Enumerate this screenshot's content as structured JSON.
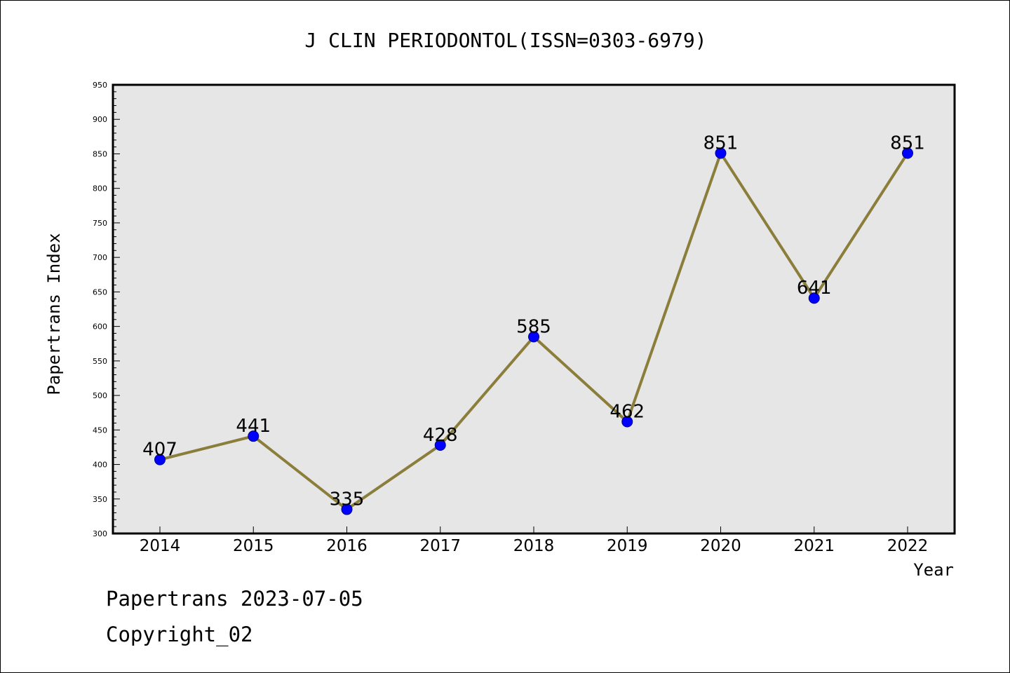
{
  "chart_data": {
    "type": "line",
    "title": "J CLIN PERIODONTOL(ISSN=0303-6979)",
    "xlabel": "Year",
    "ylabel": "Papertrans Index",
    "categories": [
      "2014",
      "2015",
      "2016",
      "2017",
      "2018",
      "2019",
      "2020",
      "2021",
      "2022"
    ],
    "series": [
      {
        "values": [
          407,
          441,
          335,
          428,
          585,
          462,
          851,
          641,
          851
        ]
      }
    ],
    "data_labels": [
      "407",
      "441",
      "335",
      "428",
      "585",
      "462",
      "851",
      "641",
      "851"
    ],
    "ylim": [
      300,
      950
    ],
    "yticks": [
      300,
      350,
      400,
      450,
      500,
      550,
      600,
      650,
      700,
      750,
      800,
      850,
      900,
      950
    ],
    "ytick_labels": [
      "300",
      "350",
      "400",
      "450",
      "500",
      "550",
      "600",
      "650",
      "700",
      "750",
      "800",
      "850",
      "900",
      "950"
    ],
    "y_minor_step": 10,
    "grid": false,
    "legend": "none",
    "colors": {
      "line": "#8b7d3a",
      "marker": "#0000ff",
      "marker_edge": "#00008b",
      "plot_background": "#e6e6e6",
      "frame": "#000000",
      "text": "#000000"
    }
  },
  "footer": {
    "line1": "Papertrans 2023-07-05",
    "line2": "Copyright_02"
  }
}
